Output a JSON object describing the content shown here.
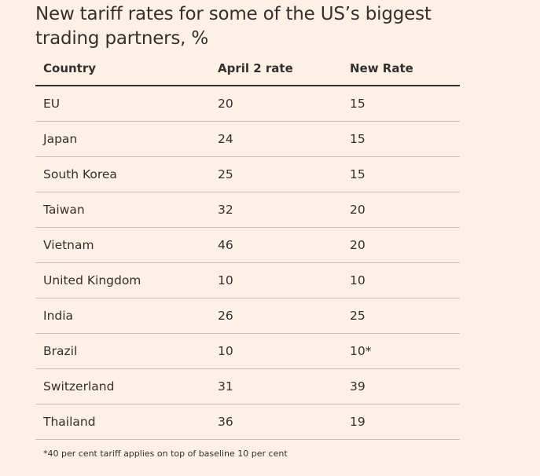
{
  "title_lines": [
    "New tariff rates for some of the US’s biggest",
    "trading partners, %"
  ],
  "columns": [
    "Country",
    "April 2 rate",
    "New Rate"
  ],
  "rows": [
    {
      "country": "EU",
      "april": "20",
      "new": "15"
    },
    {
      "country": "Japan",
      "april": "24",
      "new": "15"
    },
    {
      "country": "South Korea",
      "april": "25",
      "new": "15"
    },
    {
      "country": "Taiwan",
      "april": "32",
      "new": "20"
    },
    {
      "country": "Vietnam",
      "april": "46",
      "new": "20"
    },
    {
      "country": "United Kingdom",
      "april": "10",
      "new": "10"
    },
    {
      "country": "India",
      "april": "26",
      "new": "25"
    },
    {
      "country": "Brazil",
      "april": "10",
      "new": "10*"
    },
    {
      "country": "Switzerland",
      "april": "31",
      "new": "39"
    },
    {
      "country": "Thailand",
      "april": "36",
      "new": "19"
    }
  ],
  "footnote": "*40 per cent tariff applies on top of baseline 10 per cent",
  "chart_data": {
    "type": "table",
    "title": "New tariff rates for some of the US’s biggest trading partners, %",
    "columns": [
      "Country",
      "April 2 rate",
      "New Rate"
    ],
    "categories": [
      "EU",
      "Japan",
      "South Korea",
      "Taiwan",
      "Vietnam",
      "United Kingdom",
      "India",
      "Brazil",
      "Switzerland",
      "Thailand"
    ],
    "series": [
      {
        "name": "April 2 rate",
        "values": [
          20,
          24,
          25,
          32,
          46,
          10,
          26,
          10,
          31,
          36
        ]
      },
      {
        "name": "New Rate",
        "values": [
          15,
          15,
          15,
          20,
          20,
          10,
          25,
          10,
          39,
          19
        ]
      }
    ]
  }
}
